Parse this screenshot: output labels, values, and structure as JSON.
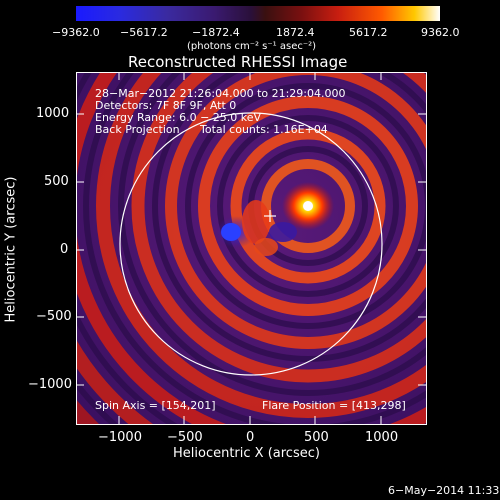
{
  "colorbar": {
    "ticks": [
      "−9362.0",
      "−5617.2",
      "−1872.4",
      "1872.4",
      "5617.2",
      "9362.0"
    ],
    "units": "(photons cm⁻² s⁻¹ asec⁻²)"
  },
  "title": "Reconstructed RHESSI Image",
  "info": {
    "time": "28−Mar−2012 21:26:04.000 to 21:29:04.000",
    "detectors": "Detectors: 7F 8F 9F, Att 0",
    "energy": "Energy Range: 6.0 − 25.0 keV",
    "method": "Back Projection",
    "counts": "Total counts: 1.16E+04",
    "spin_axis": "Spin Axis = [154,201]",
    "flare_position": "Flare Position = [413,298]"
  },
  "xaxis": {
    "label": "Heliocentric X (arcsec)",
    "ticks": [
      "−1000",
      "−500",
      "0",
      "500",
      "1000"
    ]
  },
  "yaxis": {
    "label": "Heliocentric Y (arcsec)",
    "ticks": [
      "1000",
      "500",
      "0",
      "−500",
      "−1000"
    ]
  },
  "footer": {
    "date": "6−May−2014 11:33"
  },
  "colors": {
    "background": "#000000",
    "text": "#ffffff"
  }
}
